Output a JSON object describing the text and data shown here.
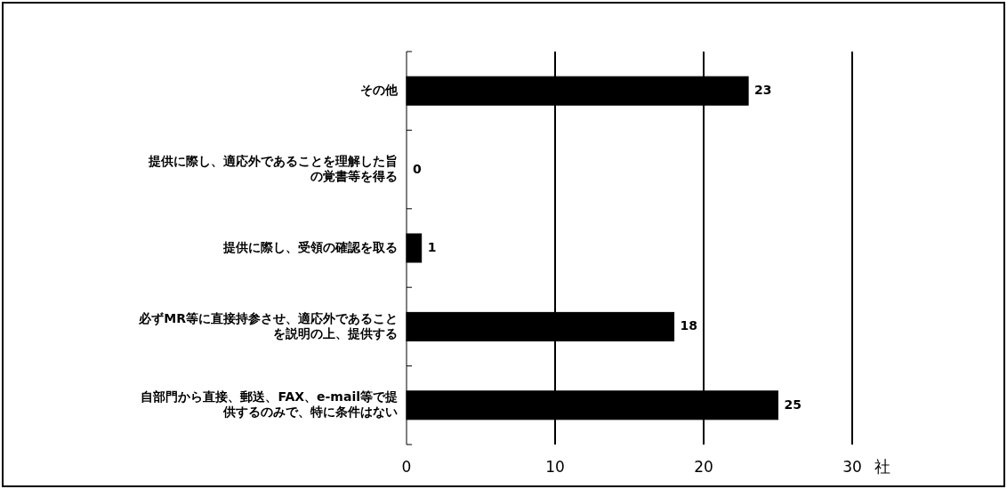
{
  "chart_data": {
    "type": "bar",
    "orientation": "horizontal",
    "categories": [
      "その他",
      "提供に際し、適応外であることを理解した旨の覚書等を得る",
      "提供に際し、受領の確認を取る",
      "必ずMR等に直接持参させ、適応外であることを説明の上、提供する",
      "自部門から直接、郵送、FAX、e-mail等で提供するのみで、特に条件はない"
    ],
    "values": [
      23,
      0,
      1,
      18,
      25
    ],
    "color": "#000000",
    "xlabel": "社",
    "xlim": [
      0,
      30
    ],
    "xticks": [
      0,
      10,
      20,
      30
    ],
    "grid": "x",
    "data_labels": true
  }
}
